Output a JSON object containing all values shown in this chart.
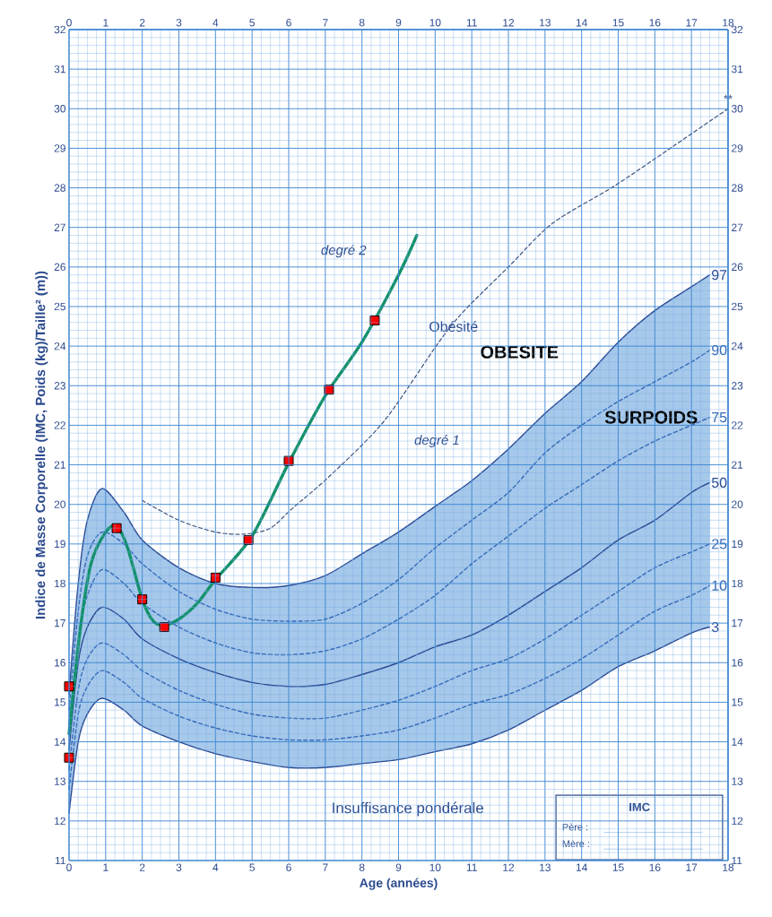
{
  "chart_data": {
    "type": "line",
    "xlabel": "Age (années)",
    "ylabel": "Indice de Masse Corporelle (IMC, Poids (kg)/Taille² (m))",
    "x": [
      0,
      0.25,
      0.5,
      0.9,
      1.5,
      2,
      3,
      4,
      5,
      6,
      7,
      8,
      9,
      10,
      11,
      12,
      13,
      14,
      15,
      16,
      17,
      17.5
    ],
    "series": [
      {
        "name": "97",
        "line_style": "solid",
        "marker": "none",
        "color": "#2a4a94",
        "values": [
          15.2,
          18.0,
          19.6,
          20.4,
          19.8,
          19.1,
          18.4,
          18.0,
          17.9,
          17.95,
          18.2,
          18.75,
          19.3,
          19.95,
          20.6,
          21.4,
          22.3,
          23.1,
          24.1,
          24.9,
          25.5,
          25.8
        ]
      },
      {
        "name": "90",
        "line_style": "dashed",
        "marker": "none",
        "color": "#3468b8",
        "values": [
          14.8,
          17.3,
          18.7,
          19.3,
          19.0,
          18.5,
          17.8,
          17.35,
          17.1,
          17.05,
          17.1,
          17.5,
          18.1,
          18.9,
          19.6,
          20.3,
          21.3,
          22.0,
          22.6,
          23.1,
          23.6,
          23.9
        ]
      },
      {
        "name": "75",
        "line_style": "dashed",
        "marker": "none",
        "color": "#3468b8",
        "values": [
          14.3,
          16.6,
          17.7,
          18.35,
          18.0,
          17.5,
          16.9,
          16.5,
          16.25,
          16.2,
          16.3,
          16.6,
          17.1,
          17.7,
          18.5,
          19.2,
          19.9,
          20.5,
          21.1,
          21.6,
          22.0,
          22.2
        ]
      },
      {
        "name": "50",
        "line_style": "solid",
        "marker": "none",
        "color": "#2a4a94",
        "values": [
          13.8,
          16.0,
          16.9,
          17.4,
          17.1,
          16.6,
          16.1,
          15.75,
          15.5,
          15.4,
          15.45,
          15.7,
          16.0,
          16.4,
          16.7,
          17.2,
          17.8,
          18.4,
          19.1,
          19.6,
          20.3,
          20.55
        ],
        "lower": [
          12.2,
          14.0,
          14.7,
          15.1,
          14.8,
          14.4,
          14.0,
          13.7,
          13.5,
          13.35,
          13.35,
          13.45,
          13.55,
          13.75,
          13.95,
          14.3,
          14.8,
          15.3,
          15.9,
          16.3,
          16.75,
          16.9
        ],
        "upper": [
          15.2,
          18.0,
          19.6,
          20.4,
          19.8,
          19.1,
          18.4,
          18.0,
          17.9,
          17.95,
          18.2,
          18.75,
          19.3,
          19.95,
          20.6,
          21.4,
          22.3,
          23.1,
          24.1,
          24.9,
          25.5,
          25.8
        ]
      },
      {
        "name": "25",
        "line_style": "dashed",
        "marker": "none",
        "color": "#3468b8",
        "values": [
          13.3,
          15.3,
          16.1,
          16.5,
          16.2,
          15.8,
          15.3,
          14.95,
          14.7,
          14.6,
          14.6,
          14.8,
          15.05,
          15.4,
          15.8,
          16.1,
          16.6,
          17.2,
          17.8,
          18.4,
          18.8,
          19.0
        ]
      },
      {
        "name": "10",
        "line_style": "dashed",
        "marker": "none",
        "color": "#3468b8",
        "values": [
          12.8,
          14.7,
          15.4,
          15.8,
          15.5,
          15.1,
          14.65,
          14.35,
          14.15,
          14.05,
          14.05,
          14.15,
          14.3,
          14.6,
          14.95,
          15.2,
          15.6,
          16.1,
          16.7,
          17.3,
          17.7,
          17.95
        ]
      },
      {
        "name": "3",
        "line_style": "solid",
        "marker": "none",
        "color": "#2a4a94",
        "values": [
          12.2,
          14.0,
          14.7,
          15.1,
          14.8,
          14.4,
          14.0,
          13.7,
          13.5,
          13.35,
          13.35,
          13.45,
          13.55,
          13.75,
          13.95,
          14.3,
          14.8,
          15.3,
          15.9,
          16.3,
          16.75,
          16.9
        ]
      },
      {
        "line_style": "dashed",
        "marker": "none",
        "color": "#3a4f7a",
        "x": [
          2,
          3,
          4,
          4.8,
          5.5,
          6.1,
          7.1,
          8.6,
          10.1,
          10.8,
          12,
          13.2,
          14.9,
          16.5,
          18
        ],
        "values": [
          20.1,
          19.6,
          19.3,
          19.25,
          19.4,
          19.9,
          20.7,
          22.1,
          24.1,
          24.9,
          26.0,
          27.1,
          28.05,
          29.05,
          30.0
        ]
      },
      {
        "line_style": "solid",
        "marker": "none",
        "color": "#13916b",
        "x": [
          0,
          0.3,
          0.6,
          1.0,
          1.3,
          1.6,
          2.0,
          2.3,
          2.6,
          3.0,
          3.5,
          4,
          5,
          6,
          7,
          8,
          9,
          9.5
        ],
        "values": [
          14.2,
          16.8,
          18.5,
          19.3,
          19.45,
          18.9,
          17.6,
          17.05,
          16.95,
          17.1,
          17.5,
          18.1,
          19.2,
          21.05,
          22.75,
          24.1,
          25.8,
          26.8
        ]
      },
      {
        "type": "scatter",
        "marker": "square",
        "color": "#ff0000",
        "x": [
          0,
          0,
          1.3,
          2,
          2.6,
          4,
          4.9,
          6,
          7.1,
          8.35
        ],
        "values": [
          13.6,
          15.4,
          19.4,
          17.6,
          16.9,
          18.15,
          19.1,
          21.1,
          22.9,
          24.65
        ]
      }
    ],
    "annotations": [
      "degré 2",
      "Obésité",
      "OBESITE",
      "SURPOIDS",
      "degré 1",
      "Insuffisance pondérale",
      "**",
      "IMC",
      "Père :",
      "Mère :"
    ],
    "xlim": [
      0,
      18
    ],
    "ylim": [
      11,
      32
    ],
    "xticks": [
      0,
      1,
      2,
      3,
      4,
      5,
      6,
      7,
      8,
      9,
      10,
      11,
      12,
      13,
      14,
      15,
      16,
      17,
      18,
      {
        "value": 0.25,
        "label": null
      },
      {
        "value": 0.5,
        "label": null
      },
      {
        "value": 0.75,
        "label": null
      },
      {
        "value": 1.25,
        "label": null
      },
      {
        "value": 1.5,
        "label": null
      },
      {
        "value": 1.75,
        "label": null
      },
      {
        "value": 2.25,
        "label": null
      },
      {
        "value": 2.5,
        "label": null
      },
      {
        "value": 2.75,
        "label": null
      },
      {
        "value": 3.25,
        "label": null
      },
      {
        "value": 3.5,
        "label": null
      },
      {
        "value": 3.75,
        "label": null
      },
      {
        "value": 4.25,
        "label": null
      },
      {
        "value": 4.5,
        "label": null
      },
      {
        "value": 4.75,
        "label": null
      },
      {
        "value": 5.25,
        "label": null
      },
      {
        "value": 5.5,
        "label": null
      },
      {
        "value": 5.75,
        "label": null
      },
      {
        "value": 6.25,
        "label": null
      },
      {
        "value": 6.5,
        "label": null
      },
      {
        "value": 6.75,
        "label": null
      },
      {
        "value": 7.25,
        "label": null
      },
      {
        "value": 7.5,
        "label": null
      },
      {
        "value": 7.75,
        "label": null
      },
      {
        "value": 8.25,
        "label": null
      },
      {
        "value": 8.5,
        "label": null
      },
      {
        "value": 8.75,
        "label": null
      },
      {
        "value": 9.25,
        "label": null
      },
      {
        "value": 9.5,
        "label": null
      },
      {
        "value": 9.75,
        "label": null
      },
      {
        "value": 10.25,
        "label": null
      },
      {
        "value": 10.5,
        "label": null
      },
      {
        "value": 10.75,
        "label": null
      },
      {
        "value": 11.25,
        "label": null
      },
      {
        "value": 11.5,
        "label": null
      },
      {
        "value": 11.75,
        "label": null
      },
      {
        "value": 12.25,
        "label": null
      },
      {
        "value": 12.5,
        "label": null
      },
      {
        "value": 12.75,
        "label": null
      },
      {
        "value": 13.25,
        "label": null
      },
      {
        "value": 13.5,
        "label": null
      },
      {
        "value": 13.75,
        "label": null
      },
      {
        "value": 14.25,
        "label": null
      },
      {
        "value": 14.5,
        "label": null
      },
      {
        "value": 14.75,
        "label": null
      },
      {
        "value": 15.25,
        "label": null
      },
      {
        "value": 15.5,
        "label": null
      },
      {
        "value": 15.75,
        "label": null
      },
      {
        "value": 16.25,
        "label": null
      },
      {
        "value": 16.5,
        "label": null
      },
      {
        "value": 16.75,
        "label": null
      },
      {
        "value": 17.25,
        "label": null
      },
      {
        "value": 17.5,
        "label": null
      },
      {
        "value": 17.75,
        "label": null
      }
    ],
    "yticks": [
      11,
      12,
      13,
      14,
      15,
      16,
      17,
      18,
      19,
      20,
      21,
      22,
      23,
      24,
      25,
      26,
      27,
      28,
      29,
      30,
      31,
      32,
      {
        "value": 11.2,
        "label": null
      },
      {
        "value": 11.4,
        "label": null
      },
      {
        "value": 11.6,
        "label": null
      },
      {
        "value": 11.8,
        "label": null
      },
      {
        "value": 12.2,
        "label": null
      },
      {
        "value": 12.4,
        "label": null
      },
      {
        "value": 12.6,
        "label": null
      },
      {
        "value": 12.8,
        "label": null
      },
      {
        "value": 13.2,
        "label": null
      },
      {
        "value": 13.4,
        "label": null
      },
      {
        "value": 13.6,
        "label": null
      },
      {
        "value": 13.8,
        "label": null
      },
      {
        "value": 14.2,
        "label": null
      },
      {
        "value": 14.4,
        "label": null
      },
      {
        "value": 14.6,
        "label": null
      },
      {
        "value": 14.8,
        "label": null
      },
      {
        "value": 15.2,
        "label": null
      },
      {
        "value": 15.4,
        "label": null
      },
      {
        "value": 15.6,
        "label": null
      },
      {
        "value": 15.8,
        "label": null
      },
      {
        "value": 16.2,
        "label": null
      },
      {
        "value": 16.4,
        "label": null
      },
      {
        "value": 16.6,
        "label": null
      },
      {
        "value": 16.8,
        "label": null
      },
      {
        "value": 17.2,
        "label": null
      },
      {
        "value": 17.4,
        "label": null
      },
      {
        "value": 17.6,
        "label": null
      },
      {
        "value": 17.8,
        "label": null
      },
      {
        "value": 18.2,
        "label": null
      },
      {
        "value": 18.4,
        "label": null
      },
      {
        "value": 18.6,
        "label": null
      },
      {
        "value": 18.8,
        "label": null
      },
      {
        "value": 19.2,
        "label": null
      },
      {
        "value": 19.4,
        "label": null
      },
      {
        "value": 19.6,
        "label": null
      },
      {
        "value": 19.8,
        "label": null
      },
      {
        "value": 20.2,
        "label": null
      },
      {
        "value": 20.4,
        "label": null
      },
      {
        "value": 20.6,
        "label": null
      },
      {
        "value": 20.8,
        "label": null
      },
      {
        "value": 21.2,
        "label": null
      },
      {
        "value": 21.4,
        "label": null
      },
      {
        "value": 21.6,
        "label": null
      },
      {
        "value": 21.8,
        "label": null
      },
      {
        "value": 22.2,
        "label": null
      },
      {
        "value": 22.4,
        "label": null
      },
      {
        "value": 22.6,
        "label": null
      },
      {
        "value": 22.8,
        "label": null
      },
      {
        "value": 23.2,
        "label": null
      },
      {
        "value": 23.4,
        "label": null
      },
      {
        "value": 23.6,
        "label": null
      },
      {
        "value": 23.8,
        "label": null
      },
      {
        "value": 24.2,
        "label": null
      },
      {
        "value": 24.4,
        "label": null
      },
      {
        "value": 24.6,
        "label": null
      },
      {
        "value": 24.8,
        "label": null
      },
      {
        "value": 25.2,
        "label": null
      },
      {
        "value": 25.4,
        "label": null
      },
      {
        "value": 25.6,
        "label": null
      },
      {
        "value": 25.8,
        "label": null
      },
      {
        "value": 26.2,
        "label": null
      },
      {
        "value": 26.4,
        "label": null
      },
      {
        "value": 26.6,
        "label": null
      },
      {
        "value": 26.8,
        "label": null
      },
      {
        "value": 27.2,
        "label": null
      },
      {
        "value": 27.4,
        "label": null
      },
      {
        "value": 27.6,
        "label": null
      },
      {
        "value": 27.8,
        "label": null
      },
      {
        "value": 28.2,
        "label": null
      },
      {
        "value": 28.4,
        "label": null
      },
      {
        "value": 28.6,
        "label": null
      },
      {
        "value": 28.8,
        "label": null
      },
      {
        "value": 29.2,
        "label": null
      },
      {
        "value": 29.4,
        "label": null
      },
      {
        "value": 29.6,
        "label": null
      },
      {
        "value": 29.8,
        "label": null
      },
      {
        "value": 30.2,
        "label": null
      },
      {
        "value": 30.4,
        "label": null
      },
      {
        "value": 30.6,
        "label": null
      },
      {
        "value": 30.8,
        "label": null
      },
      {
        "value": 31.2,
        "label": null
      },
      {
        "value": 31.4,
        "label": null
      },
      {
        "value": 31.6,
        "label": null
      },
      {
        "value": 31.8,
        "label": null
      }
    ],
    "x2lim": [
      0,
      18
    ],
    "y2lim": [
      11,
      32
    ],
    "x2ticks": [
      0,
      1,
      2,
      3,
      4,
      5,
      6,
      7,
      8,
      9,
      10,
      11,
      12,
      13,
      14,
      15,
      16,
      17,
      18
    ],
    "y2ticks": [
      11,
      12,
      13,
      14,
      15,
      16,
      17,
      18,
      19,
      20,
      21,
      22,
      23,
      24,
      25,
      26,
      27,
      28,
      29,
      30,
      31,
      32
    ],
    "grid": true
  }
}
